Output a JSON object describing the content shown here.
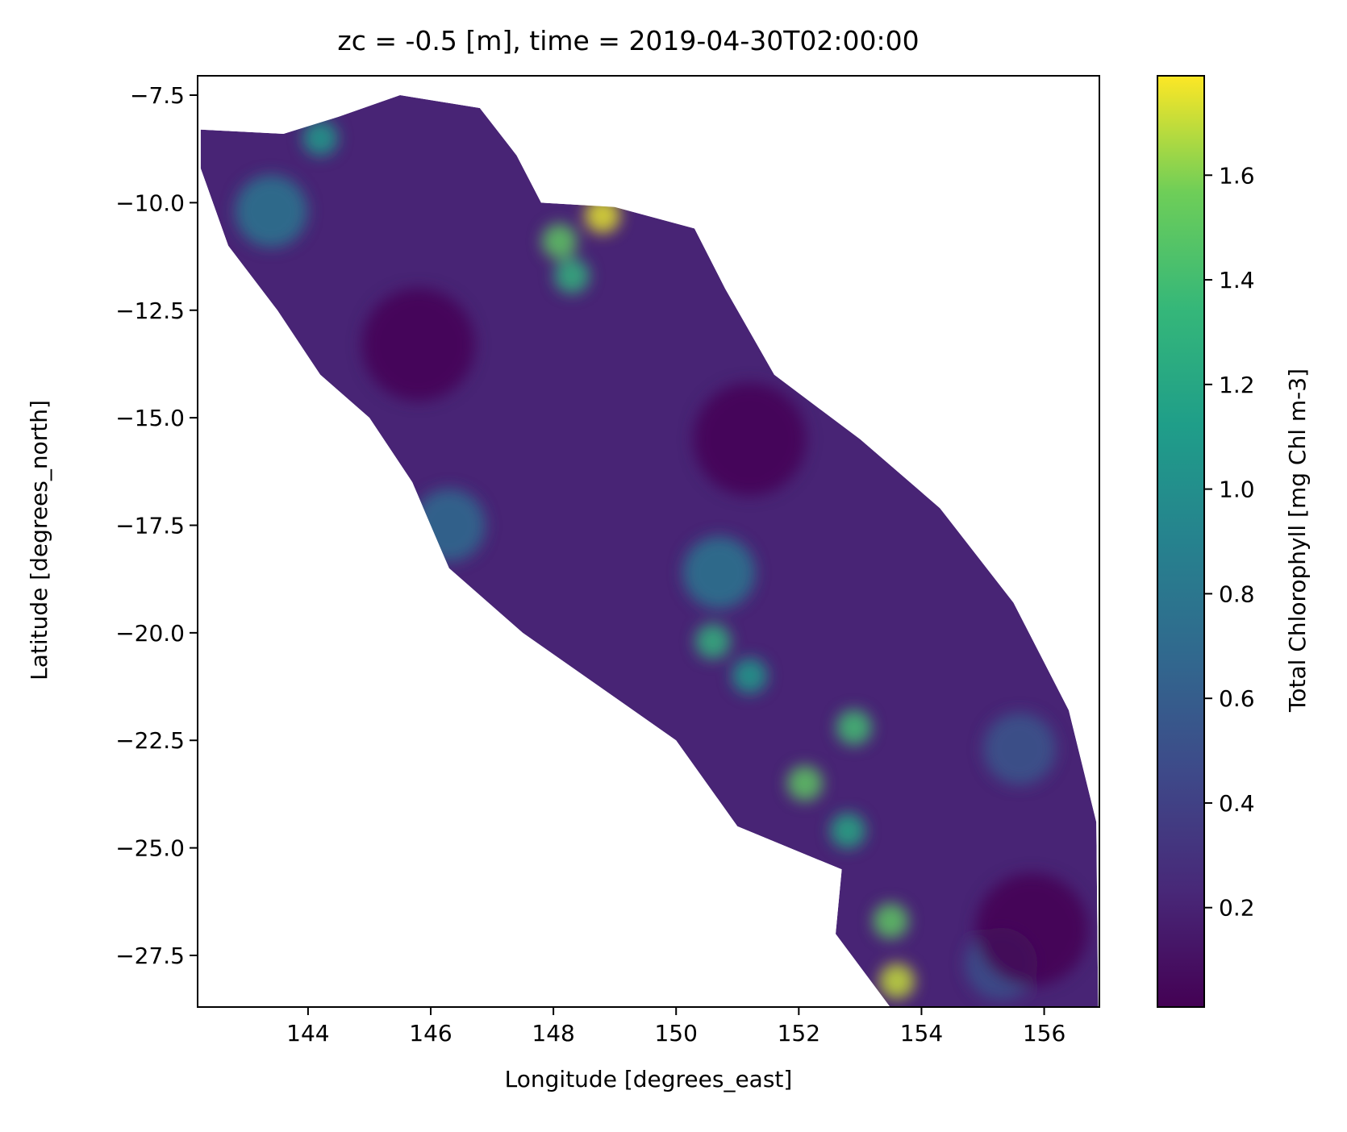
{
  "chart_data": {
    "type": "heatmap",
    "title": "zc = -0.5 [m], time = 2019-04-30T02:00:00",
    "xlabel": "Longitude [degrees_east]",
    "ylabel": "Latitude [degrees_north]",
    "xlim": [
      142.2,
      156.9
    ],
    "ylim": [
      -28.7,
      -7.05
    ],
    "xticks": [
      144,
      146,
      148,
      150,
      152,
      154,
      156
    ],
    "xtick_labels": [
      "144",
      "146",
      "148",
      "150",
      "152",
      "154",
      "156"
    ],
    "yticks": [
      -7.5,
      -10.0,
      -12.5,
      -15.0,
      -17.5,
      -20.0,
      -22.5,
      -25.0,
      -27.5
    ],
    "ytick_labels": [
      "−7.5",
      "−10.0",
      "−12.5",
      "−15.0",
      "−17.5",
      "−20.0",
      "−22.5",
      "−25.0",
      "−27.5"
    ],
    "colormap": "viridis",
    "colorbar": {
      "label": "Total Chlorophyll [mg Chl m-3]",
      "range": [
        0.01,
        1.79
      ],
      "ticks": [
        0.2,
        0.4,
        0.6,
        0.8,
        1.0,
        1.2,
        1.4,
        1.6
      ],
      "tick_labels": [
        "0.2",
        "0.4",
        "0.6",
        "0.8",
        "1.0",
        "1.2",
        "1.4",
        "1.6"
      ]
    },
    "grid": false,
    "domain_outline_lonlat": [
      [
        142.25,
        -8.3
      ],
      [
        143.6,
        -8.4
      ],
      [
        144.5,
        -8.0
      ],
      [
        145.5,
        -7.5
      ],
      [
        146.8,
        -7.8
      ],
      [
        147.4,
        -8.9
      ],
      [
        147.8,
        -10.0
      ],
      [
        149.0,
        -10.1
      ],
      [
        150.3,
        -10.6
      ],
      [
        150.8,
        -12.0
      ],
      [
        151.6,
        -14.0
      ],
      [
        153.0,
        -15.5
      ],
      [
        154.3,
        -17.1
      ],
      [
        155.5,
        -19.3
      ],
      [
        156.4,
        -21.8
      ],
      [
        156.85,
        -24.4
      ],
      [
        156.88,
        -28.72
      ],
      [
        153.5,
        -28.72
      ],
      [
        152.6,
        -27.0
      ],
      [
        152.7,
        -25.5
      ],
      [
        151.0,
        -24.5
      ],
      [
        150.0,
        -22.5
      ],
      [
        149.0,
        -21.5
      ],
      [
        147.5,
        -20.0
      ],
      [
        146.3,
        -18.5
      ],
      [
        145.7,
        -16.5
      ],
      [
        145.0,
        -15.0
      ],
      [
        144.2,
        -14.0
      ],
      [
        143.5,
        -12.5
      ],
      [
        142.7,
        -11.0
      ],
      [
        142.25,
        -9.2
      ]
    ],
    "concentration_features": [
      {
        "lon": 148.1,
        "lat": -10.9,
        "value": 1.5
      },
      {
        "lon": 148.8,
        "lat": -10.3,
        "value": 1.75
      },
      {
        "lon": 148.3,
        "lat": -11.7,
        "value": 1.3
      },
      {
        "lon": 144.2,
        "lat": -8.5,
        "value": 1.1
      },
      {
        "lon": 143.4,
        "lat": -10.2,
        "value": 0.8
      },
      {
        "lon": 150.6,
        "lat": -20.2,
        "value": 1.3
      },
      {
        "lon": 151.2,
        "lat": -21.0,
        "value": 1.1
      },
      {
        "lon": 152.9,
        "lat": -22.2,
        "value": 1.4
      },
      {
        "lon": 152.1,
        "lat": -23.5,
        "value": 1.5
      },
      {
        "lon": 152.8,
        "lat": -24.6,
        "value": 1.2
      },
      {
        "lon": 153.5,
        "lat": -26.7,
        "value": 1.5
      },
      {
        "lon": 153.6,
        "lat": -28.1,
        "value": 1.7
      },
      {
        "lon": 150.7,
        "lat": -18.6,
        "value": 0.8
      },
      {
        "lon": 146.3,
        "lat": -17.5,
        "value": 0.7
      },
      {
        "lon": 155.6,
        "lat": -22.7,
        "value": 0.55
      },
      {
        "lon": 155.3,
        "lat": -27.7,
        "value": 0.5
      },
      {
        "lon": 145.8,
        "lat": -13.3,
        "value": 0.02
      },
      {
        "lon": 151.2,
        "lat": -15.5,
        "value": 0.02
      },
      {
        "lon": 155.8,
        "lat": -26.9,
        "value": 0.01
      }
    ]
  }
}
